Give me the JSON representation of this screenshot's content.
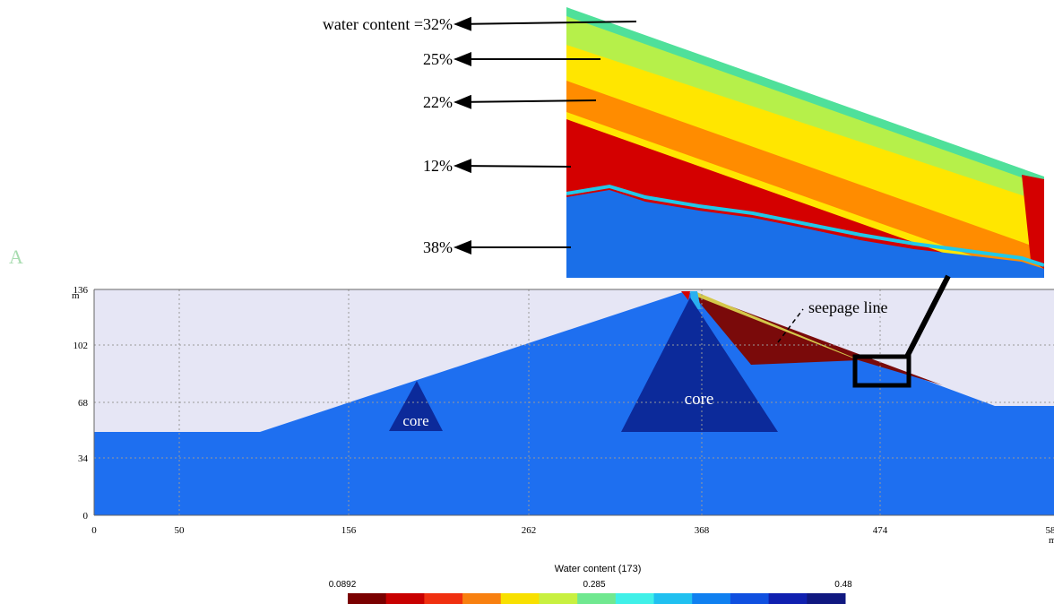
{
  "annotations": {
    "levels": [
      "water content =32%",
      "25%",
      "22%",
      "12%",
      "38%"
    ],
    "seepage": "seepage line",
    "cores": [
      "core",
      "core"
    ],
    "panel": "A"
  },
  "axes": {
    "y_ticks": [
      "136",
      "102",
      "68",
      "34",
      "0"
    ],
    "y_unit": "m",
    "x_ticks": [
      "0",
      "50",
      "156",
      "262",
      "368",
      "474",
      "58"
    ],
    "x_unit": "m"
  },
  "legend": {
    "title": "Water content (173)",
    "labels": [
      "0.0892",
      "0.285",
      "0.48"
    ]
  }
}
